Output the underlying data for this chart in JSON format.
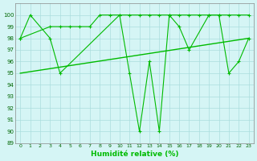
{
  "series1_x": [
    0,
    1,
    3,
    4,
    10,
    11,
    12,
    13,
    14,
    15,
    16,
    17,
    19,
    20,
    21,
    22,
    23
  ],
  "series1_y": [
    98,
    100,
    98,
    95,
    100,
    95,
    90,
    96,
    90,
    100,
    99,
    97,
    100,
    100,
    95,
    96,
    98
  ],
  "series2_x": [
    0,
    3,
    4,
    5,
    6,
    7,
    8,
    9,
    10,
    11,
    12,
    13,
    14,
    15,
    16,
    17,
    18,
    19,
    20,
    21,
    22,
    23
  ],
  "series2_y": [
    98,
    99,
    99,
    99,
    99,
    99,
    100,
    100,
    100,
    100,
    100,
    100,
    100,
    100,
    100,
    100,
    100,
    100,
    100,
    100,
    100,
    100
  ],
  "trend_x": [
    0,
    23
  ],
  "trend_y": [
    95.0,
    98.0
  ],
  "line_color": "#00bb00",
  "bg_color": "#d5f5f5",
  "grid_color": "#aadddd",
  "xlabel": "Humidité relative (%)",
  "xlim": [
    -0.5,
    23.5
  ],
  "ylim": [
    89,
    101
  ],
  "yticks": [
    89,
    90,
    91,
    92,
    93,
    94,
    95,
    96,
    97,
    98,
    99,
    100
  ],
  "xticks": [
    0,
    1,
    2,
    3,
    4,
    5,
    6,
    7,
    8,
    9,
    10,
    11,
    12,
    13,
    14,
    15,
    16,
    17,
    18,
    19,
    20,
    21,
    22,
    23
  ]
}
